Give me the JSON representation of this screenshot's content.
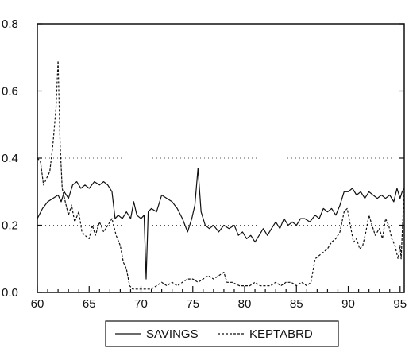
{
  "chart_data": {
    "type": "line",
    "title": "",
    "xlabel": "",
    "ylabel": "",
    "xlim": [
      60,
      95.4
    ],
    "ylim": [
      0.0,
      0.8
    ],
    "x_ticks": [
      "60",
      "65",
      "70",
      "75",
      "80",
      "85",
      "90",
      "95"
    ],
    "y_ticks": [
      "0.0",
      "0.2",
      "0.4",
      "0.6",
      "0.8"
    ],
    "grid": "dotted horizontal",
    "legend_position": "bottom-center",
    "series": [
      {
        "name": "SAVINGS",
        "style": "solid",
        "color": "#111111",
        "points": [
          [
            60.0,
            0.22
          ],
          [
            60.5,
            0.25
          ],
          [
            61.0,
            0.27
          ],
          [
            61.5,
            0.28
          ],
          [
            62.0,
            0.29
          ],
          [
            62.3,
            0.27
          ],
          [
            62.6,
            0.3
          ],
          [
            63.0,
            0.28
          ],
          [
            63.4,
            0.32
          ],
          [
            63.8,
            0.33
          ],
          [
            64.2,
            0.31
          ],
          [
            64.6,
            0.32
          ],
          [
            65.0,
            0.31
          ],
          [
            65.5,
            0.33
          ],
          [
            66.0,
            0.32
          ],
          [
            66.4,
            0.33
          ],
          [
            66.8,
            0.32
          ],
          [
            67.2,
            0.3
          ],
          [
            67.5,
            0.22
          ],
          [
            67.8,
            0.23
          ],
          [
            68.2,
            0.22
          ],
          [
            68.6,
            0.24
          ],
          [
            69.0,
            0.22
          ],
          [
            69.3,
            0.27
          ],
          [
            69.6,
            0.23
          ],
          [
            70.0,
            0.22
          ],
          [
            70.3,
            0.23
          ],
          [
            70.5,
            0.04
          ],
          [
            70.7,
            0.24
          ],
          [
            71.0,
            0.25
          ],
          [
            71.5,
            0.24
          ],
          [
            72.0,
            0.29
          ],
          [
            72.5,
            0.28
          ],
          [
            73.0,
            0.27
          ],
          [
            73.5,
            0.25
          ],
          [
            74.0,
            0.22
          ],
          [
            74.5,
            0.18
          ],
          [
            74.9,
            0.22
          ],
          [
            75.2,
            0.26
          ],
          [
            75.5,
            0.37
          ],
          [
            75.8,
            0.24
          ],
          [
            76.2,
            0.2
          ],
          [
            76.6,
            0.19
          ],
          [
            77.0,
            0.2
          ],
          [
            77.5,
            0.18
          ],
          [
            78.0,
            0.2
          ],
          [
            78.5,
            0.19
          ],
          [
            79.0,
            0.2
          ],
          [
            79.4,
            0.17
          ],
          [
            79.8,
            0.18
          ],
          [
            80.2,
            0.16
          ],
          [
            80.6,
            0.17
          ],
          [
            81.0,
            0.15
          ],
          [
            81.4,
            0.17
          ],
          [
            81.8,
            0.19
          ],
          [
            82.2,
            0.17
          ],
          [
            82.6,
            0.19
          ],
          [
            83.0,
            0.21
          ],
          [
            83.4,
            0.19
          ],
          [
            83.8,
            0.22
          ],
          [
            84.2,
            0.2
          ],
          [
            84.6,
            0.21
          ],
          [
            85.0,
            0.2
          ],
          [
            85.4,
            0.22
          ],
          [
            85.8,
            0.22
          ],
          [
            86.3,
            0.21
          ],
          [
            86.8,
            0.23
          ],
          [
            87.2,
            0.22
          ],
          [
            87.6,
            0.25
          ],
          [
            88.0,
            0.24
          ],
          [
            88.4,
            0.25
          ],
          [
            88.8,
            0.23
          ],
          [
            89.2,
            0.26
          ],
          [
            89.6,
            0.3
          ],
          [
            90.0,
            0.3
          ],
          [
            90.4,
            0.31
          ],
          [
            90.8,
            0.29
          ],
          [
            91.2,
            0.3
          ],
          [
            91.6,
            0.28
          ],
          [
            92.0,
            0.3
          ],
          [
            92.4,
            0.29
          ],
          [
            92.8,
            0.28
          ],
          [
            93.2,
            0.29
          ],
          [
            93.6,
            0.28
          ],
          [
            94.0,
            0.29
          ],
          [
            94.4,
            0.27
          ],
          [
            94.7,
            0.31
          ],
          [
            95.0,
            0.28
          ],
          [
            95.2,
            0.3
          ],
          [
            95.4,
            0.31
          ]
        ]
      },
      {
        "name": "KEPTABRD",
        "style": "dashed",
        "color": "#111111",
        "points": [
          [
            60.0,
            0.4
          ],
          [
            60.3,
            0.39
          ],
          [
            60.6,
            0.32
          ],
          [
            60.9,
            0.34
          ],
          [
            61.2,
            0.36
          ],
          [
            61.5,
            0.44
          ],
          [
            61.8,
            0.55
          ],
          [
            62.0,
            0.69
          ],
          [
            62.2,
            0.44
          ],
          [
            62.4,
            0.31
          ],
          [
            62.7,
            0.27
          ],
          [
            63.0,
            0.23
          ],
          [
            63.3,
            0.26
          ],
          [
            63.6,
            0.21
          ],
          [
            64.0,
            0.24
          ],
          [
            64.3,
            0.18
          ],
          [
            64.6,
            0.17
          ],
          [
            65.0,
            0.16
          ],
          [
            65.3,
            0.2
          ],
          [
            65.6,
            0.17
          ],
          [
            66.0,
            0.21
          ],
          [
            66.4,
            0.18
          ],
          [
            66.8,
            0.2
          ],
          [
            67.2,
            0.22
          ],
          [
            67.6,
            0.17
          ],
          [
            68.0,
            0.14
          ],
          [
            68.3,
            0.09
          ],
          [
            68.6,
            0.07
          ],
          [
            68.9,
            0.02
          ],
          [
            69.2,
            0.01
          ],
          [
            70.0,
            0.01
          ],
          [
            71.0,
            0.01
          ],
          [
            71.5,
            0.02
          ],
          [
            72.0,
            0.03
          ],
          [
            72.5,
            0.02
          ],
          [
            73.0,
            0.03
          ],
          [
            73.5,
            0.02
          ],
          [
            74.0,
            0.03
          ],
          [
            74.5,
            0.04
          ],
          [
            75.0,
            0.04
          ],
          [
            75.5,
            0.03
          ],
          [
            76.0,
            0.04
          ],
          [
            76.5,
            0.05
          ],
          [
            77.0,
            0.04
          ],
          [
            77.5,
            0.05
          ],
          [
            78.0,
            0.06
          ],
          [
            78.3,
            0.03
          ],
          [
            78.8,
            0.03
          ],
          [
            79.5,
            0.02
          ],
          [
            80.0,
            0.02
          ],
          [
            80.5,
            0.02
          ],
          [
            81.0,
            0.03
          ],
          [
            81.5,
            0.02
          ],
          [
            82.0,
            0.02
          ],
          [
            82.5,
            0.02
          ],
          [
            83.0,
            0.03
          ],
          [
            83.5,
            0.02
          ],
          [
            84.0,
            0.03
          ],
          [
            84.5,
            0.03
          ],
          [
            85.0,
            0.02
          ],
          [
            85.5,
            0.03
          ],
          [
            86.0,
            0.02
          ],
          [
            86.4,
            0.03
          ],
          [
            86.8,
            0.1
          ],
          [
            87.2,
            0.11
          ],
          [
            87.6,
            0.12
          ],
          [
            88.0,
            0.13
          ],
          [
            88.4,
            0.15
          ],
          [
            88.8,
            0.16
          ],
          [
            89.2,
            0.18
          ],
          [
            89.6,
            0.24
          ],
          [
            89.9,
            0.25
          ],
          [
            90.2,
            0.2
          ],
          [
            90.5,
            0.15
          ],
          [
            90.8,
            0.16
          ],
          [
            91.1,
            0.13
          ],
          [
            91.4,
            0.14
          ],
          [
            91.7,
            0.18
          ],
          [
            92.0,
            0.23
          ],
          [
            92.3,
            0.2
          ],
          [
            92.6,
            0.17
          ],
          [
            93.0,
            0.19
          ],
          [
            93.3,
            0.16
          ],
          [
            93.6,
            0.22
          ],
          [
            93.9,
            0.2
          ],
          [
            94.2,
            0.16
          ],
          [
            94.5,
            0.14
          ],
          [
            94.8,
            0.1
          ],
          [
            95.0,
            0.14
          ],
          [
            95.1,
            0.1
          ],
          [
            95.3,
            0.24
          ],
          [
            95.4,
            0.3
          ]
        ]
      }
    ]
  }
}
